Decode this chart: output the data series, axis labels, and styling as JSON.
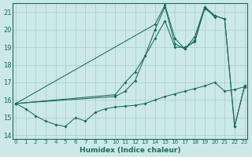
{
  "xlabel": "Humidex (Indice chaleur)",
  "bg_color": "#cce8e8",
  "grid_color": "#aacccc",
  "line_color": "#1a6b5a",
  "xlim": [
    0,
    23
  ],
  "ylim": [
    13.8,
    21.5
  ],
  "yticks": [
    14,
    15,
    16,
    17,
    18,
    19,
    20,
    21
  ],
  "xticks": [
    0,
    1,
    2,
    3,
    4,
    5,
    6,
    7,
    8,
    9,
    10,
    11,
    12,
    13,
    14,
    15,
    16,
    17,
    18,
    19,
    20,
    21,
    22,
    23
  ],
  "series": [
    {
      "x": [
        0,
        1,
        2,
        3,
        4,
        5,
        6,
        7,
        8,
        9,
        10,
        11,
        12,
        13,
        14,
        15,
        16,
        17,
        18,
        19,
        20,
        21,
        22,
        23
      ],
      "y": [
        15.8,
        15.5,
        15.1,
        14.8,
        14.6,
        14.5,
        15.0,
        14.8,
        15.3,
        15.5,
        15.6,
        15.65,
        15.7,
        15.8,
        16.0,
        16.2,
        16.35,
        16.5,
        16.65,
        16.8,
        17.0,
        16.5,
        16.6,
        16.75
      ]
    },
    {
      "x": [
        0,
        10,
        11,
        12,
        13,
        14,
        15,
        16,
        17,
        18,
        19,
        20
      ],
      "y": [
        15.8,
        16.3,
        17.0,
        17.6,
        18.5,
        19.5,
        20.5,
        19.0,
        19.0,
        19.3,
        21.3,
        20.7
      ]
    },
    {
      "x": [
        0,
        10,
        11,
        12,
        13,
        14,
        15,
        16,
        17,
        18,
        19,
        20,
        21,
        22,
        23
      ],
      "y": [
        15.8,
        16.2,
        16.5,
        17.1,
        18.5,
        20.0,
        21.3,
        19.2,
        18.9,
        19.4,
        21.2,
        20.8,
        20.6,
        14.5,
        16.8
      ]
    },
    {
      "x": [
        0,
        14,
        15,
        16,
        17,
        18,
        19,
        20,
        21,
        22,
        23
      ],
      "y": [
        15.8,
        20.3,
        21.4,
        19.5,
        18.9,
        19.6,
        21.3,
        20.8,
        20.6,
        14.5,
        16.8
      ]
    }
  ]
}
